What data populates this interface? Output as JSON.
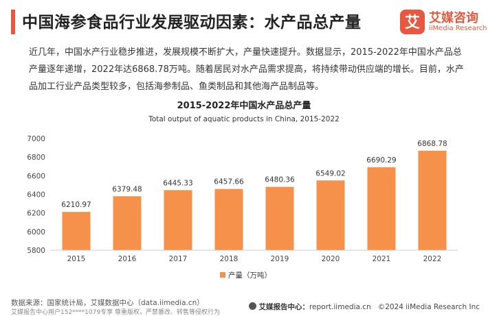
{
  "page": {
    "title": "中国海参食品行业发展驱动因素：水产品总产量",
    "intro": "近几年，中国水产行业稳步推进，发展规模不断扩大，产量快速提升。数据显示，2015-2022年中国水产品总产量逐年递增，2022年达6868.78万吨。随着居民对水产品需求提高，将持续带动供应端的增长。目前，水产品加工行业产品类型较多，包括海参制品、鱼类制品和其他海产品制品等。"
  },
  "logo": {
    "cn": "艾媒咨询",
    "en": "iiMedia Research",
    "glyph": "艾"
  },
  "colors": {
    "accent": "#e8573f",
    "bar": "#f5914a"
  },
  "chart_data": {
    "type": "bar",
    "title": "2015-2022年中国水产品总产量",
    "subtitle": "Total output of aquatic products in China, 2015-2022",
    "categories": [
      "2015",
      "2016",
      "2017",
      "2018",
      "2019",
      "2020",
      "2021",
      "2022"
    ],
    "series": [
      {
        "name": "产量（万吨）",
        "values": [
          6210.97,
          6379.48,
          6445.33,
          6457.66,
          6480.36,
          6549.02,
          6690.29,
          6868.78
        ]
      }
    ],
    "value_labels": [
      "6210.97",
      "6379.48",
      "6445.33",
      "6457.66",
      "6480.36",
      "6549.02",
      "6690.29",
      "6868.78"
    ],
    "ylim": [
      5800,
      7000
    ],
    "yticks": [
      5800,
      6000,
      6200,
      6400,
      6600,
      6800,
      7000
    ],
    "grid": false,
    "legend": "bottom-center"
  },
  "footer": {
    "source": "数据来源：国家统计局，艾媒数据中心（data.iimedia.cn）",
    "copyright": "艾媒报告中心用户152****1079专享 尊重版权，严禁篡改、转售等侵权行为",
    "report_label": "艾媒报告中心：",
    "report_url": "report.iimedia.cn",
    "company": "©2024  iiMedia Research  Inc"
  }
}
